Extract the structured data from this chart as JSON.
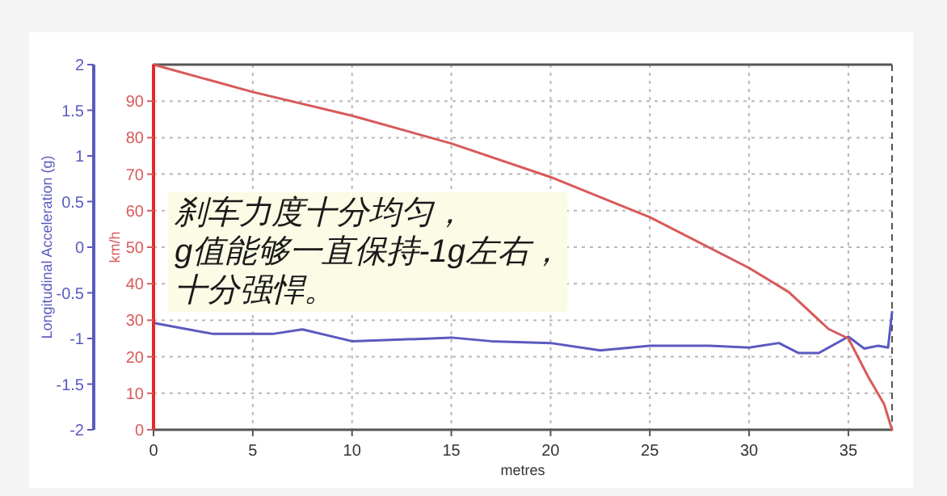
{
  "chart_data": {
    "type": "line",
    "xlabel": "metres",
    "ylabel": "Longitudinal Acceleration (g)",
    "y2label": "km/h",
    "annotations": [
      "刹车力度十分均匀，",
      "g值能够一直保持-1g左右，",
      "十分强悍。"
    ],
    "xlim": [
      0,
      37.2
    ],
    "xticks": [
      0,
      5,
      10,
      15,
      20,
      25,
      30,
      35
    ],
    "ylim": [
      -2,
      2
    ],
    "yticks": [
      -2,
      -1.5,
      -1,
      -0.5,
      0,
      0.5,
      1,
      1.5,
      2
    ],
    "y2lim": [
      0,
      100
    ],
    "y2ticks": [
      0,
      10,
      20,
      30,
      40,
      50,
      60,
      70,
      80,
      90
    ],
    "grid": true,
    "line_style": "solid",
    "marker": "none",
    "series": [
      {
        "color": "#5a5ac0",
        "x": [
          0,
          3,
          6,
          7.5,
          10,
          14,
          15,
          17,
          20,
          22.5,
          25,
          28,
          30,
          31.5,
          32.5,
          33.5,
          35,
          35.8,
          36.5,
          37,
          37.2
        ],
        "values": [
          -0.83,
          -0.95,
          -0.95,
          -0.9,
          -1.03,
          -1.0,
          -0.99,
          -1.03,
          -1.05,
          -1.13,
          -1.08,
          -1.08,
          -1.1,
          -1.05,
          -1.16,
          -1.16,
          -0.98,
          -1.11,
          -1.08,
          -1.1,
          -0.71
        ]
      },
      {
        "color": "#d85a5a",
        "axis": "y2",
        "x": [
          0,
          5,
          10,
          15,
          20,
          25,
          30,
          32,
          34,
          35,
          36,
          36.8,
          37.2
        ],
        "values": [
          100,
          92.5,
          86,
          78.4,
          69.2,
          58.2,
          44.3,
          37.7,
          27.6,
          25,
          14.5,
          7,
          0
        ]
      }
    ]
  }
}
